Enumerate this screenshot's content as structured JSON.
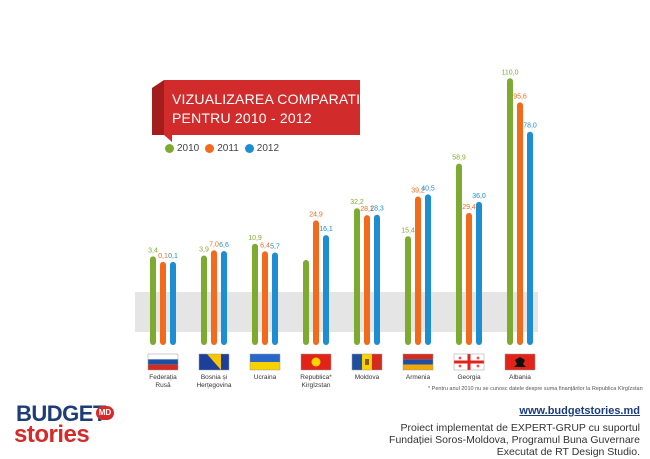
{
  "chart_data": {
    "type": "bar",
    "title": "VIZUALIZAREA COMPARATIVĂ PENTRU 2010 - 2012",
    "title_lines": [
      "VIZUALIZAREA COMPARATIVĂ",
      "PENTRU 2010 - 2012"
    ],
    "categories": [
      "Federația Rusă",
      "Bosnia și Herțegovina",
      "Ucraina",
      "Republica* Kirgîzstan",
      "Moldova",
      "Armenia",
      "Georgia",
      "Albania"
    ],
    "category_lines": [
      [
        "Federația",
        "Rusă"
      ],
      [
        "Bosnia și",
        "Herțegovina"
      ],
      [
        "Ucraina"
      ],
      [
        "Republica*",
        "Kirgîzstan"
      ],
      [
        "Moldova"
      ],
      [
        "Armenia"
      ],
      [
        "Georgia"
      ],
      [
        "Albania"
      ]
    ],
    "series": [
      {
        "name": "2010",
        "color": "#7dab31",
        "values": [
          3.4,
          3.9,
          10.9,
          null,
          32.2,
          15.4,
          58.9,
          110.0
        ],
        "labels": [
          "3,4",
          "3,9",
          "10,9",
          "",
          "32,2",
          "15,4",
          "58,9",
          "110,0"
        ]
      },
      {
        "name": "2011",
        "color": "#f26b1d",
        "values": [
          0.1,
          7.0,
          6.4,
          24.9,
          28.1,
          39.2,
          29.4,
          95.6
        ],
        "labels": [
          "0,1",
          "7,0",
          "6,4",
          "24,9",
          "28,1",
          "39,2",
          "29,4",
          "95,6"
        ]
      },
      {
        "name": "2012",
        "color": "#1c8ed1",
        "values": [
          0.1,
          6.6,
          5.7,
          16.1,
          28.3,
          40.5,
          36.0,
          78.0
        ],
        "labels": [
          "0,1",
          "6,6",
          "5,7",
          "16,1",
          "28,3",
          "40,5",
          "36,0",
          "78,0"
        ]
      }
    ],
    "legend_position": "top-left",
    "grid": false
  },
  "flags": [
    "russia-flag",
    "bosnia-flag",
    "ukraine-flag",
    "kyrgyzstan-flag",
    "moldova-flag",
    "armenia-flag",
    "georgia-flag",
    "albania-flag"
  ],
  "footnote": "* Pentru anul 2010 nu se cunosc datele despre suma finanțărilor la Republica Kîrgîzstan",
  "logo": {
    "line1": "BUDGET",
    "line2": "stories",
    "badge": "MD"
  },
  "website": "www.budgetstories.md",
  "footer_lines": [
    "Proiect implementat de EXPERT-GRUP cu suportul",
    "Fundației Soros-Moldova, Programul Buna Guvernare",
    "Executat de RT Design Studio."
  ]
}
